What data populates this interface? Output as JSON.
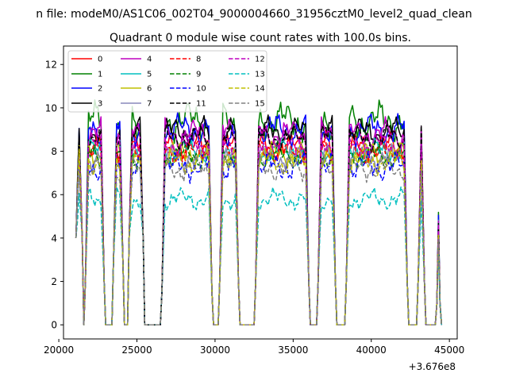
{
  "chart_data": {
    "type": "line",
    "suptitle": "n file: modeM0/AS1C06_002T04_9000004660_31956cztM0_level2_quad_clean",
    "title": "Quadrant 0 module wise count rates with 100.0s bins.",
    "xlabel": "",
    "ylabel": "",
    "x_offset_label": "+3.676e8",
    "xlim": [
      20300,
      45500
    ],
    "ylim": [
      -0.65,
      12.85
    ],
    "xticks": [
      20000,
      25000,
      30000,
      35000,
      40000,
      45000
    ],
    "xtick_labels": [
      "20000",
      "25000",
      "30000",
      "35000",
      "40000",
      "45000"
    ],
    "yticks": [
      0,
      2,
      4,
      6,
      8,
      10,
      12
    ],
    "ytick_labels": [
      "0",
      "2",
      "4",
      "6",
      "8",
      "10",
      "12"
    ],
    "grid": false,
    "legend_position": "top-left",
    "legend_columns": 4,
    "segments": [
      {
        "x_start": 21100,
        "x_end": 21500,
        "flank_min": 4,
        "flank_max": 10
      },
      {
        "x_start": 21700,
        "x_end": 22900,
        "flank_min": 2,
        "flank_max": 10
      },
      {
        "x_start": 23500,
        "x_end": 24100,
        "flank_min": 3,
        "flank_max": 10
      },
      {
        "x_start": 24500,
        "x_end": 25400,
        "flank_min": 4,
        "flank_max": 10
      },
      {
        "x_start": 26600,
        "x_end": 29800,
        "flank_min": 1.5,
        "flank_max": 10
      },
      {
        "x_start": 30300,
        "x_end": 31500,
        "flank_min": 2,
        "flank_max": 10
      },
      {
        "x_start": 32600,
        "x_end": 36000,
        "flank_min": 2,
        "flank_max": 10
      },
      {
        "x_start": 36600,
        "x_end": 37700,
        "flank_min": 2,
        "flank_max": 10
      },
      {
        "x_start": 38400,
        "x_end": 42300,
        "flank_min": 2,
        "flank_max": 10
      },
      {
        "x_start": 43000,
        "x_end": 43400,
        "flank_min": 2,
        "flank_max": 10
      },
      {
        "x_start": 44200,
        "x_end": 44400,
        "flank_min": 1,
        "flank_max": 9
      }
    ],
    "series": [
      {
        "name": "0",
        "color": "#ff0000",
        "style": "solid",
        "base": 8.2,
        "amp": 0.8
      },
      {
        "name": "1",
        "color": "#008000",
        "style": "solid",
        "base": 9.4,
        "amp": 1.1
      },
      {
        "name": "2",
        "color": "#0000ff",
        "style": "solid",
        "base": 9.0,
        "amp": 0.9
      },
      {
        "name": "3",
        "color": "#000000",
        "style": "solid",
        "base": 8.9,
        "amp": 0.8
      },
      {
        "name": "4",
        "color": "#bf00bf",
        "style": "solid",
        "base": 8.8,
        "amp": 0.8
      },
      {
        "name": "5",
        "color": "#00bfbf",
        "style": "solid",
        "base": 8.0,
        "amp": 0.7
      },
      {
        "name": "6",
        "color": "#bfbf00",
        "style": "solid",
        "base": 7.9,
        "amp": 0.7
      },
      {
        "name": "7",
        "color": "#8888bb",
        "style": "solid",
        "base": 7.7,
        "amp": 0.7
      },
      {
        "name": "8",
        "color": "#ff0000",
        "style": "dashed",
        "base": 8.0,
        "amp": 0.7
      },
      {
        "name": "9",
        "color": "#008000",
        "style": "dashed",
        "base": 7.8,
        "amp": 0.7
      },
      {
        "name": "10",
        "color": "#0000ff",
        "style": "dashed",
        "base": 7.3,
        "amp": 0.8
      },
      {
        "name": "11",
        "color": "#000000",
        "style": "dashed",
        "base": 8.6,
        "amp": 0.7
      },
      {
        "name": "12",
        "color": "#bf00bf",
        "style": "dashed",
        "base": 8.3,
        "amp": 0.7
      },
      {
        "name": "13",
        "color": "#00bfbf",
        "style": "dashed",
        "base": 5.8,
        "amp": 0.6
      },
      {
        "name": "14",
        "color": "#bfbf00",
        "style": "dashed",
        "base": 7.5,
        "amp": 0.7
      },
      {
        "name": "15",
        "color": "#808080",
        "style": "dashed",
        "base": 7.2,
        "amp": 0.7
      }
    ]
  }
}
